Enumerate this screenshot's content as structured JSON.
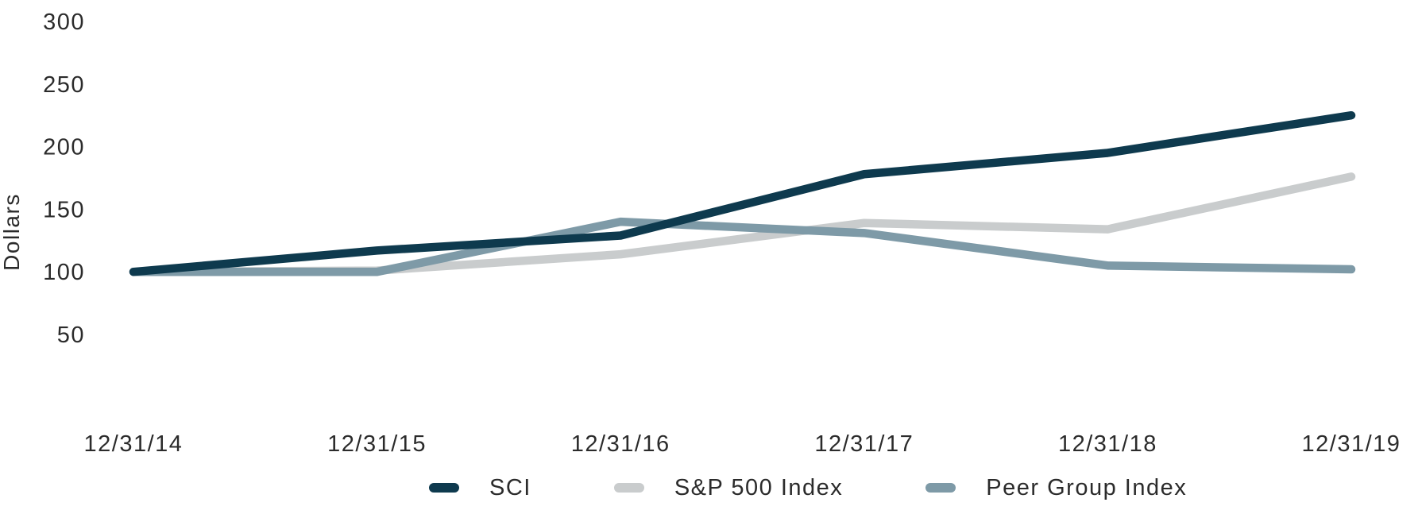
{
  "chart_data": {
    "type": "line",
    "title": "",
    "xlabel": "",
    "ylabel": "Dollars",
    "categories": [
      "12/31/14",
      "12/31/15",
      "12/31/16",
      "12/31/17",
      "12/31/18",
      "12/31/19"
    ],
    "yticks": [
      50,
      100,
      150,
      200,
      250,
      300
    ],
    "ylim": [
      50,
      300
    ],
    "grid": false,
    "legend_position": "bottom",
    "series": [
      {
        "name": "SCI",
        "color": "#0e3a4e",
        "values": [
          100,
          117,
          129,
          178,
          195,
          225
        ]
      },
      {
        "name": "S&P 500 Index",
        "color": "#c9cccd",
        "values": [
          100,
          101,
          114,
          139,
          134,
          176
        ]
      },
      {
        "name": "Peer Group Index",
        "color": "#7e9aa7",
        "values": [
          100,
          100,
          140,
          131,
          105,
          102
        ]
      }
    ],
    "axis_text_color": "#2b2b2b"
  }
}
